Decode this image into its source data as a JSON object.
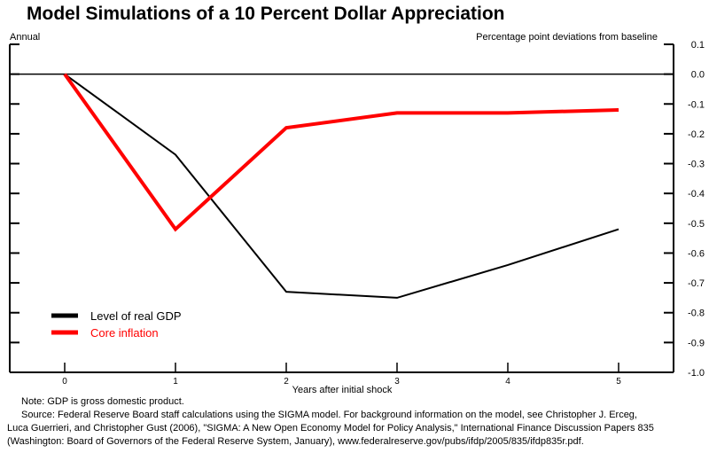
{
  "chart_data": {
    "type": "line",
    "title": "Model Simulations of a 10 Percent Dollar Appreciation",
    "subtitle_left": "Annual",
    "ylabel": "Percentage point deviations from baseline",
    "xlabel": "Years after initial shock",
    "x": [
      0,
      1,
      2,
      3,
      4,
      5
    ],
    "xlim": [
      -0.5,
      5.5
    ],
    "ylim": [
      -1.0,
      0.1
    ],
    "yticks": [
      0.1,
      0.0,
      -0.1,
      -0.2,
      -0.3,
      -0.4,
      -0.5,
      -0.6,
      -0.7,
      -0.8,
      -0.9,
      -1.0
    ],
    "ytick_labels": [
      "0.1",
      "0.0",
      "-0.1",
      "-0.2",
      "-0.3",
      "-0.4",
      "-0.5",
      "-0.6",
      "-0.7",
      "-0.8",
      "-0.9",
      "-1.0"
    ],
    "xtick_labels": [
      "0",
      "1",
      "2",
      "3",
      "4",
      "5"
    ],
    "grid": false,
    "zero_line": true,
    "legend_position": "bottom-left",
    "series": [
      {
        "name": "Level of real GDP",
        "color": "#000000",
        "values": [
          0.0,
          -0.27,
          -0.73,
          -0.75,
          -0.64,
          -0.52
        ]
      },
      {
        "name": "Core inflation",
        "color": "#ff0000",
        "values": [
          0.0,
          -0.52,
          -0.18,
          -0.13,
          -0.13,
          -0.12
        ]
      }
    ]
  },
  "notes": {
    "note": "Note:  GDP is gross domestic product.",
    "source_line1": "Source:  Federal Reserve Board staff calculations using the SIGMA model.  For background information on the model, see Christopher J. Erceg,",
    "source_line2": "Luca Guerrieri, and Christopher Gust (2006), \"SIGMA:  A New Open Economy Model for Policy Analysis,\" International Finance Discussion Papers 835",
    "source_line3": "(Washington: Board of Governors of the Federal Reserve System, January), www.federalreserve.gov/pubs/ifdp/2005/835/ifdp835r.pdf."
  }
}
